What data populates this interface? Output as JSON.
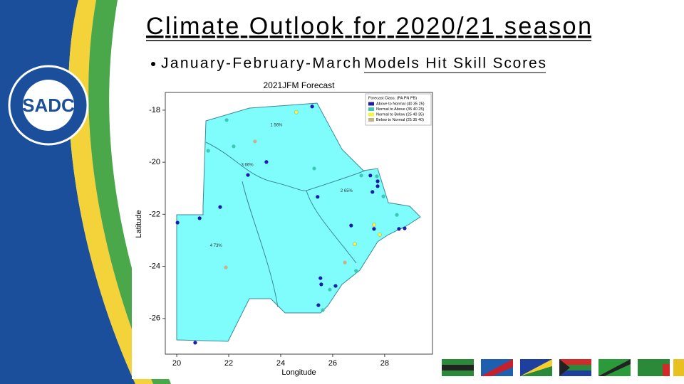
{
  "slide": {
    "title": "Climate Outlook for 2020/21 season",
    "bullet_lead": "January-February-March",
    "bullet_underlined": "Models Hit Skill Scores"
  },
  "chart_data": {
    "type": "scatter",
    "title": "2021JFM Forecast",
    "xlabel": "Longitude",
    "ylabel": "Latitude",
    "xlim": [
      19.56,
      29.84
    ],
    "ylim": [
      -27.37,
      -17.32
    ],
    "xticks": [
      20,
      22,
      24,
      26,
      28
    ],
    "yticks": [
      -18,
      -20,
      -22,
      -24,
      -26
    ],
    "legend_title": "Forecast Class: (PA PN PB)",
    "legend_position": "upper right",
    "annotations": [
      {
        "text": "1 56%",
        "x": 23.6,
        "y": -18.57
      },
      {
        "text": "3 66%",
        "x": 22.48,
        "y": -20.1
      },
      {
        "text": "2 65%",
        "x": 26.3,
        "y": -21.1
      },
      {
        "text": "4 73%",
        "x": 21.28,
        "y": -23.2
      }
    ],
    "series": [
      {
        "name": "Above to Normal (40 35 25)",
        "color": "#1c1ca8",
        "x": [
          25.21,
          23.45,
          22.74,
          21.67,
          20.88,
          20.03,
          25.42,
          27.45,
          27.73,
          27.73,
          27.53,
          26.71,
          27.59,
          28.55,
          28.77,
          25.53,
          25.56,
          26.11,
          25.45,
          20.71
        ],
        "values": [
          -17.86,
          -19.99,
          -20.49,
          -21.72,
          -22.15,
          -22.32,
          -21.33,
          -20.51,
          -20.73,
          -20.92,
          -21.14,
          -22.43,
          -22.56,
          -22.56,
          -22.54,
          -24.45,
          -24.69,
          -24.75,
          -25.49,
          -26.93
        ]
      },
      {
        "name": "Normal to Above (35 40 25)",
        "color": "#3cc8b4",
        "x": [
          21.92,
          22.19,
          21.21,
          25.29,
          27.1,
          27.7,
          27.95,
          28.47,
          26.9,
          25.89,
          25.62
        ],
        "values": [
          -18.38,
          -19.39,
          -19.56,
          -20.24,
          -20.51,
          -20.54,
          -21.31,
          -22.02,
          -24.17,
          -24.89,
          -25.68
        ]
      },
      {
        "name": "Normal to Below (25 40 35)",
        "color": "#f5f53a",
        "x": [
          24.6,
          27.59,
          27.81,
          26.85
        ],
        "values": [
          -18.08,
          -22.4,
          -22.78,
          -23.14
        ]
      },
      {
        "name": "Below to Normal (25 35 40)",
        "color": "#c8b08a",
        "x": [
          23.01,
          21.89,
          26.47
        ],
        "values": [
          -19.2,
          -24.04,
          -23.85
        ]
      }
    ]
  }
}
